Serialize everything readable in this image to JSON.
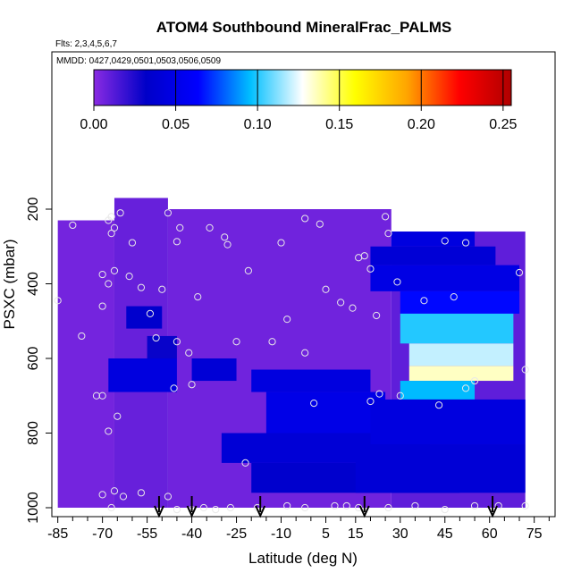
{
  "chart_data": {
    "type": "heatmap",
    "title": "ATOM4 Southbound MineralFrac_PALMS",
    "flights_note": "Flts: 2,3,4,5,6,7",
    "dates_note": "MMDD: 0427,0429,0501,0503,0506,0509",
    "xlabel": "Latitude (deg N)",
    "ylabel": "PSXC (mbar)",
    "xlim": [
      -87,
      82
    ],
    "ylim": [
      1010,
      0
    ],
    "x_ticks": [
      -85,
      -70,
      -55,
      -40,
      -25,
      -10,
      5,
      15,
      30,
      45,
      60,
      75
    ],
    "x_minor_ticks": [
      -80,
      -75,
      -65,
      -60,
      -50,
      -45,
      -35,
      -30,
      -20,
      -15,
      -5,
      0,
      10,
      20,
      25,
      35,
      40,
      50,
      55,
      65,
      70,
      80
    ],
    "y_ticks": [
      200,
      400,
      600,
      800,
      1000
    ],
    "colorbar": {
      "min": 0.0,
      "max": 0.255,
      "ticks": [
        0.0,
        0.05,
        0.1,
        0.15,
        0.2,
        0.25
      ],
      "tick_labels": [
        "0.00",
        "0.05",
        "0.10",
        "0.15",
        "0.20",
        "0.25"
      ],
      "colors": [
        "#8a2be2",
        "#0000c8",
        "#0000ff",
        "#00bfff",
        "#ffffff",
        "#ffff00",
        "#ffa500",
        "#ff0000",
        "#b00000"
      ]
    },
    "cells": [
      {
        "lat0": -85,
        "lat1": -66,
        "p0": 230,
        "p1": 1000,
        "v": 0.005
      },
      {
        "lat0": -66,
        "lat1": -48,
        "p0": 170,
        "p1": 1000,
        "v": 0.008
      },
      {
        "lat0": -48,
        "lat1": 27,
        "p0": 200,
        "p1": 1000,
        "v": 0.006
      },
      {
        "lat0": 27,
        "lat1": 72,
        "p0": 260,
        "p1": 1000,
        "v": 0.01
      },
      {
        "lat0": -62,
        "lat1": -50,
        "p0": 460,
        "p1": 520,
        "v": 0.035
      },
      {
        "lat0": -55,
        "lat1": -45,
        "p0": 540,
        "p1": 600,
        "v": 0.03
      },
      {
        "lat0": -68,
        "lat1": -45,
        "p0": 600,
        "p1": 690,
        "v": 0.045
      },
      {
        "lat0": -40,
        "lat1": -25,
        "p0": 600,
        "p1": 660,
        "v": 0.04
      },
      {
        "lat0": -20,
        "lat1": 20,
        "p0": 630,
        "p1": 690,
        "v": 0.045
      },
      {
        "lat0": -15,
        "lat1": 25,
        "p0": 690,
        "p1": 800,
        "v": 0.05
      },
      {
        "lat0": -30,
        "lat1": 40,
        "p0": 800,
        "p1": 880,
        "v": 0.04
      },
      {
        "lat0": -20,
        "lat1": 50,
        "p0": 880,
        "p1": 960,
        "v": 0.035
      },
      {
        "lat0": 27,
        "lat1": 55,
        "p0": 260,
        "p1": 300,
        "v": 0.045
      },
      {
        "lat0": 20,
        "lat1": 62,
        "p0": 300,
        "p1": 350,
        "v": 0.04
      },
      {
        "lat0": 20,
        "lat1": 70,
        "p0": 350,
        "p1": 420,
        "v": 0.048
      },
      {
        "lat0": 30,
        "lat1": 70,
        "p0": 420,
        "p1": 480,
        "v": 0.065
      },
      {
        "lat0": 30,
        "lat1": 68,
        "p0": 480,
        "p1": 560,
        "v": 0.1
      },
      {
        "lat0": 33,
        "lat1": 68,
        "p0": 560,
        "p1": 620,
        "v": 0.12
      },
      {
        "lat0": 33,
        "lat1": 68,
        "p0": 620,
        "p1": 660,
        "v": 0.135
      },
      {
        "lat0": 30,
        "lat1": 55,
        "p0": 660,
        "p1": 710,
        "v": 0.095
      },
      {
        "lat0": 20,
        "lat1": 72,
        "p0": 710,
        "p1": 830,
        "v": 0.045
      },
      {
        "lat0": 15,
        "lat1": 72,
        "p0": 830,
        "p1": 960,
        "v": 0.04
      }
    ],
    "circles": [
      [
        -85,
        445
      ],
      [
        -80,
        243
      ],
      [
        -77,
        540
      ],
      [
        -70,
        375
      ],
      [
        -72,
        700
      ],
      [
        -70,
        700
      ],
      [
        -70,
        460
      ],
      [
        -68,
        230
      ],
      [
        -67,
        220
      ],
      [
        -66,
        250
      ],
      [
        -67,
        265
      ],
      [
        -64,
        210
      ],
      [
        -68,
        400
      ],
      [
        -66,
        365
      ],
      [
        -68,
        795
      ],
      [
        -65,
        755
      ],
      [
        -70,
        965
      ],
      [
        -66,
        955
      ],
      [
        -60,
        290
      ],
      [
        -61,
        380
      ],
      [
        -57,
        410
      ],
      [
        -54,
        480
      ],
      [
        -52,
        545
      ],
      [
        -50,
        415
      ],
      [
        -48,
        210
      ],
      [
        -45,
        555
      ],
      [
        -46,
        680
      ],
      [
        -40,
        670
      ],
      [
        -41,
        585
      ],
      [
        -45,
        287
      ],
      [
        -44,
        250
      ],
      [
        -38,
        435
      ],
      [
        -34,
        250
      ],
      [
        -29,
        275
      ],
      [
        -25,
        555
      ],
      [
        -22,
        880
      ],
      [
        -13,
        555
      ],
      [
        -28,
        295
      ],
      [
        -21,
        365
      ],
      [
        -10,
        290
      ],
      [
        -8,
        495
      ],
      [
        -2,
        585
      ],
      [
        -2,
        225
      ],
      [
        1,
        720
      ],
      [
        3,
        240
      ],
      [
        5,
        415
      ],
      [
        10,
        450
      ],
      [
        14,
        465
      ],
      [
        16,
        330
      ],
      [
        18,
        325
      ],
      [
        20,
        715
      ],
      [
        20,
        360
      ],
      [
        22,
        485
      ],
      [
        23,
        695
      ],
      [
        25,
        220
      ],
      [
        26,
        265
      ],
      [
        29,
        395
      ],
      [
        30,
        700
      ],
      [
        38,
        445
      ],
      [
        43,
        725
      ],
      [
        45,
        285
      ],
      [
        48,
        435
      ],
      [
        52,
        680
      ],
      [
        52,
        290
      ],
      [
        55,
        660
      ],
      [
        70,
        370
      ],
      [
        72,
        630
      ],
      [
        -67,
        1000
      ],
      [
        -63,
        970
      ],
      [
        -57,
        960
      ],
      [
        -48,
        970
      ],
      [
        -45,
        1005
      ],
      [
        -40,
        1005
      ],
      [
        -36,
        1000
      ],
      [
        -32,
        1005
      ],
      [
        -27,
        1000
      ],
      [
        -18,
        1000
      ],
      [
        -8,
        995
      ],
      [
        -2,
        1000
      ],
      [
        8,
        995
      ],
      [
        12,
        995
      ],
      [
        16,
        1000
      ],
      [
        26,
        1000
      ],
      [
        35,
        995
      ],
      [
        45,
        1005
      ],
      [
        55,
        995
      ],
      [
        63,
        995
      ],
      [
        72,
        995
      ]
    ],
    "arrows": [
      -51,
      -40,
      -17,
      18,
      61
    ]
  }
}
